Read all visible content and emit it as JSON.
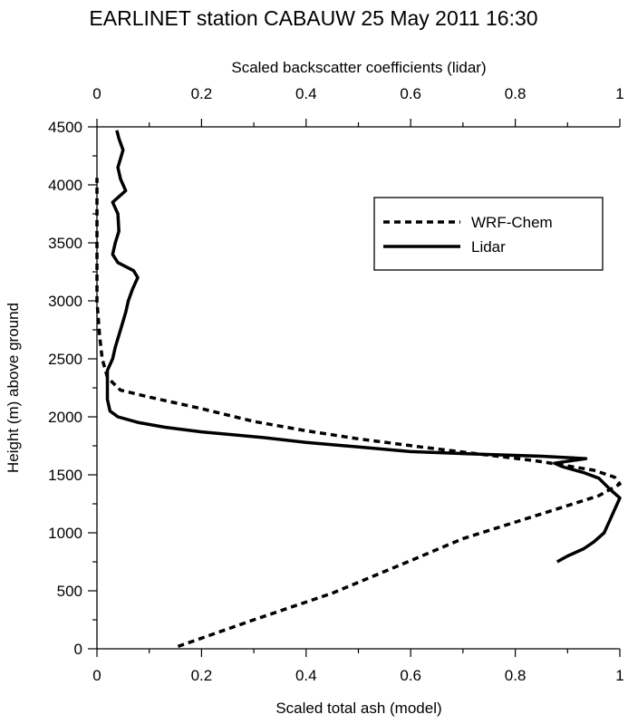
{
  "chart_data": {
    "type": "line",
    "title": "EARLINET station CABAUW 25 May 2011 16:30",
    "xlabel_bottom": "Scaled total ash (model)",
    "xlabel_top": "Scaled backscatter coefficients (lidar)",
    "ylabel": "Height (m) above ground",
    "xlim": [
      0,
      1
    ],
    "ylim": [
      0,
      4500
    ],
    "x_ticks": [
      "0",
      "0.2",
      "0.4",
      "0.6",
      "0.8",
      "1"
    ],
    "y_ticks": [
      "0",
      "500",
      "1000",
      "1500",
      "2000",
      "2500",
      "3000",
      "3500",
      "4000",
      "4500"
    ],
    "grid": false,
    "legend_position": "top-right",
    "series": [
      {
        "name": "WRF-Chem",
        "style": "dashed",
        "axis": "bottom",
        "points": [
          [
            0.155,
            20
          ],
          [
            0.3,
            250
          ],
          [
            0.45,
            480
          ],
          [
            0.6,
            760
          ],
          [
            0.7,
            950
          ],
          [
            0.82,
            1120
          ],
          [
            0.89,
            1220
          ],
          [
            0.96,
            1320
          ],
          [
            1.0,
            1420
          ],
          [
            0.99,
            1480
          ],
          [
            0.95,
            1540
          ],
          [
            0.84,
            1620
          ],
          [
            0.73,
            1680
          ],
          [
            0.62,
            1740
          ],
          [
            0.5,
            1810
          ],
          [
            0.4,
            1880
          ],
          [
            0.3,
            1960
          ],
          [
            0.2,
            2070
          ],
          [
            0.1,
            2170
          ],
          [
            0.045,
            2230
          ],
          [
            0.02,
            2340
          ],
          [
            0.01,
            2500
          ],
          [
            0.005,
            2700
          ],
          [
            0.0,
            3000
          ],
          [
            0.0,
            3500
          ],
          [
            0.0,
            4000
          ],
          [
            0.0,
            4060
          ]
        ]
      },
      {
        "name": "Lidar",
        "style": "solid",
        "axis": "top",
        "points": [
          [
            0.88,
            750
          ],
          [
            0.9,
            800
          ],
          [
            0.93,
            860
          ],
          [
            0.95,
            920
          ],
          [
            0.97,
            1000
          ],
          [
            0.98,
            1100
          ],
          [
            0.99,
            1200
          ],
          [
            1.0,
            1300
          ],
          [
            0.98,
            1380
          ],
          [
            0.96,
            1470
          ],
          [
            0.93,
            1520
          ],
          [
            0.89,
            1570
          ],
          [
            0.875,
            1600
          ],
          [
            0.935,
            1640
          ],
          [
            0.85,
            1660
          ],
          [
            0.72,
            1680
          ],
          [
            0.6,
            1700
          ],
          [
            0.5,
            1740
          ],
          [
            0.4,
            1780
          ],
          [
            0.32,
            1820
          ],
          [
            0.2,
            1870
          ],
          [
            0.13,
            1910
          ],
          [
            0.08,
            1950
          ],
          [
            0.04,
            2000
          ],
          [
            0.025,
            2050
          ],
          [
            0.02,
            2150
          ],
          [
            0.02,
            2250
          ],
          [
            0.02,
            2400
          ],
          [
            0.03,
            2500
          ],
          [
            0.035,
            2600
          ],
          [
            0.045,
            2750
          ],
          [
            0.055,
            2900
          ],
          [
            0.06,
            3000
          ],
          [
            0.068,
            3100
          ],
          [
            0.078,
            3200
          ],
          [
            0.07,
            3260
          ],
          [
            0.04,
            3330
          ],
          [
            0.03,
            3400
          ],
          [
            0.035,
            3500
          ],
          [
            0.042,
            3600
          ],
          [
            0.04,
            3750
          ],
          [
            0.03,
            3850
          ],
          [
            0.055,
            3950
          ],
          [
            0.045,
            4050
          ],
          [
            0.04,
            4150
          ],
          [
            0.05,
            4300
          ],
          [
            0.042,
            4400
          ],
          [
            0.038,
            4470
          ]
        ]
      }
    ]
  }
}
